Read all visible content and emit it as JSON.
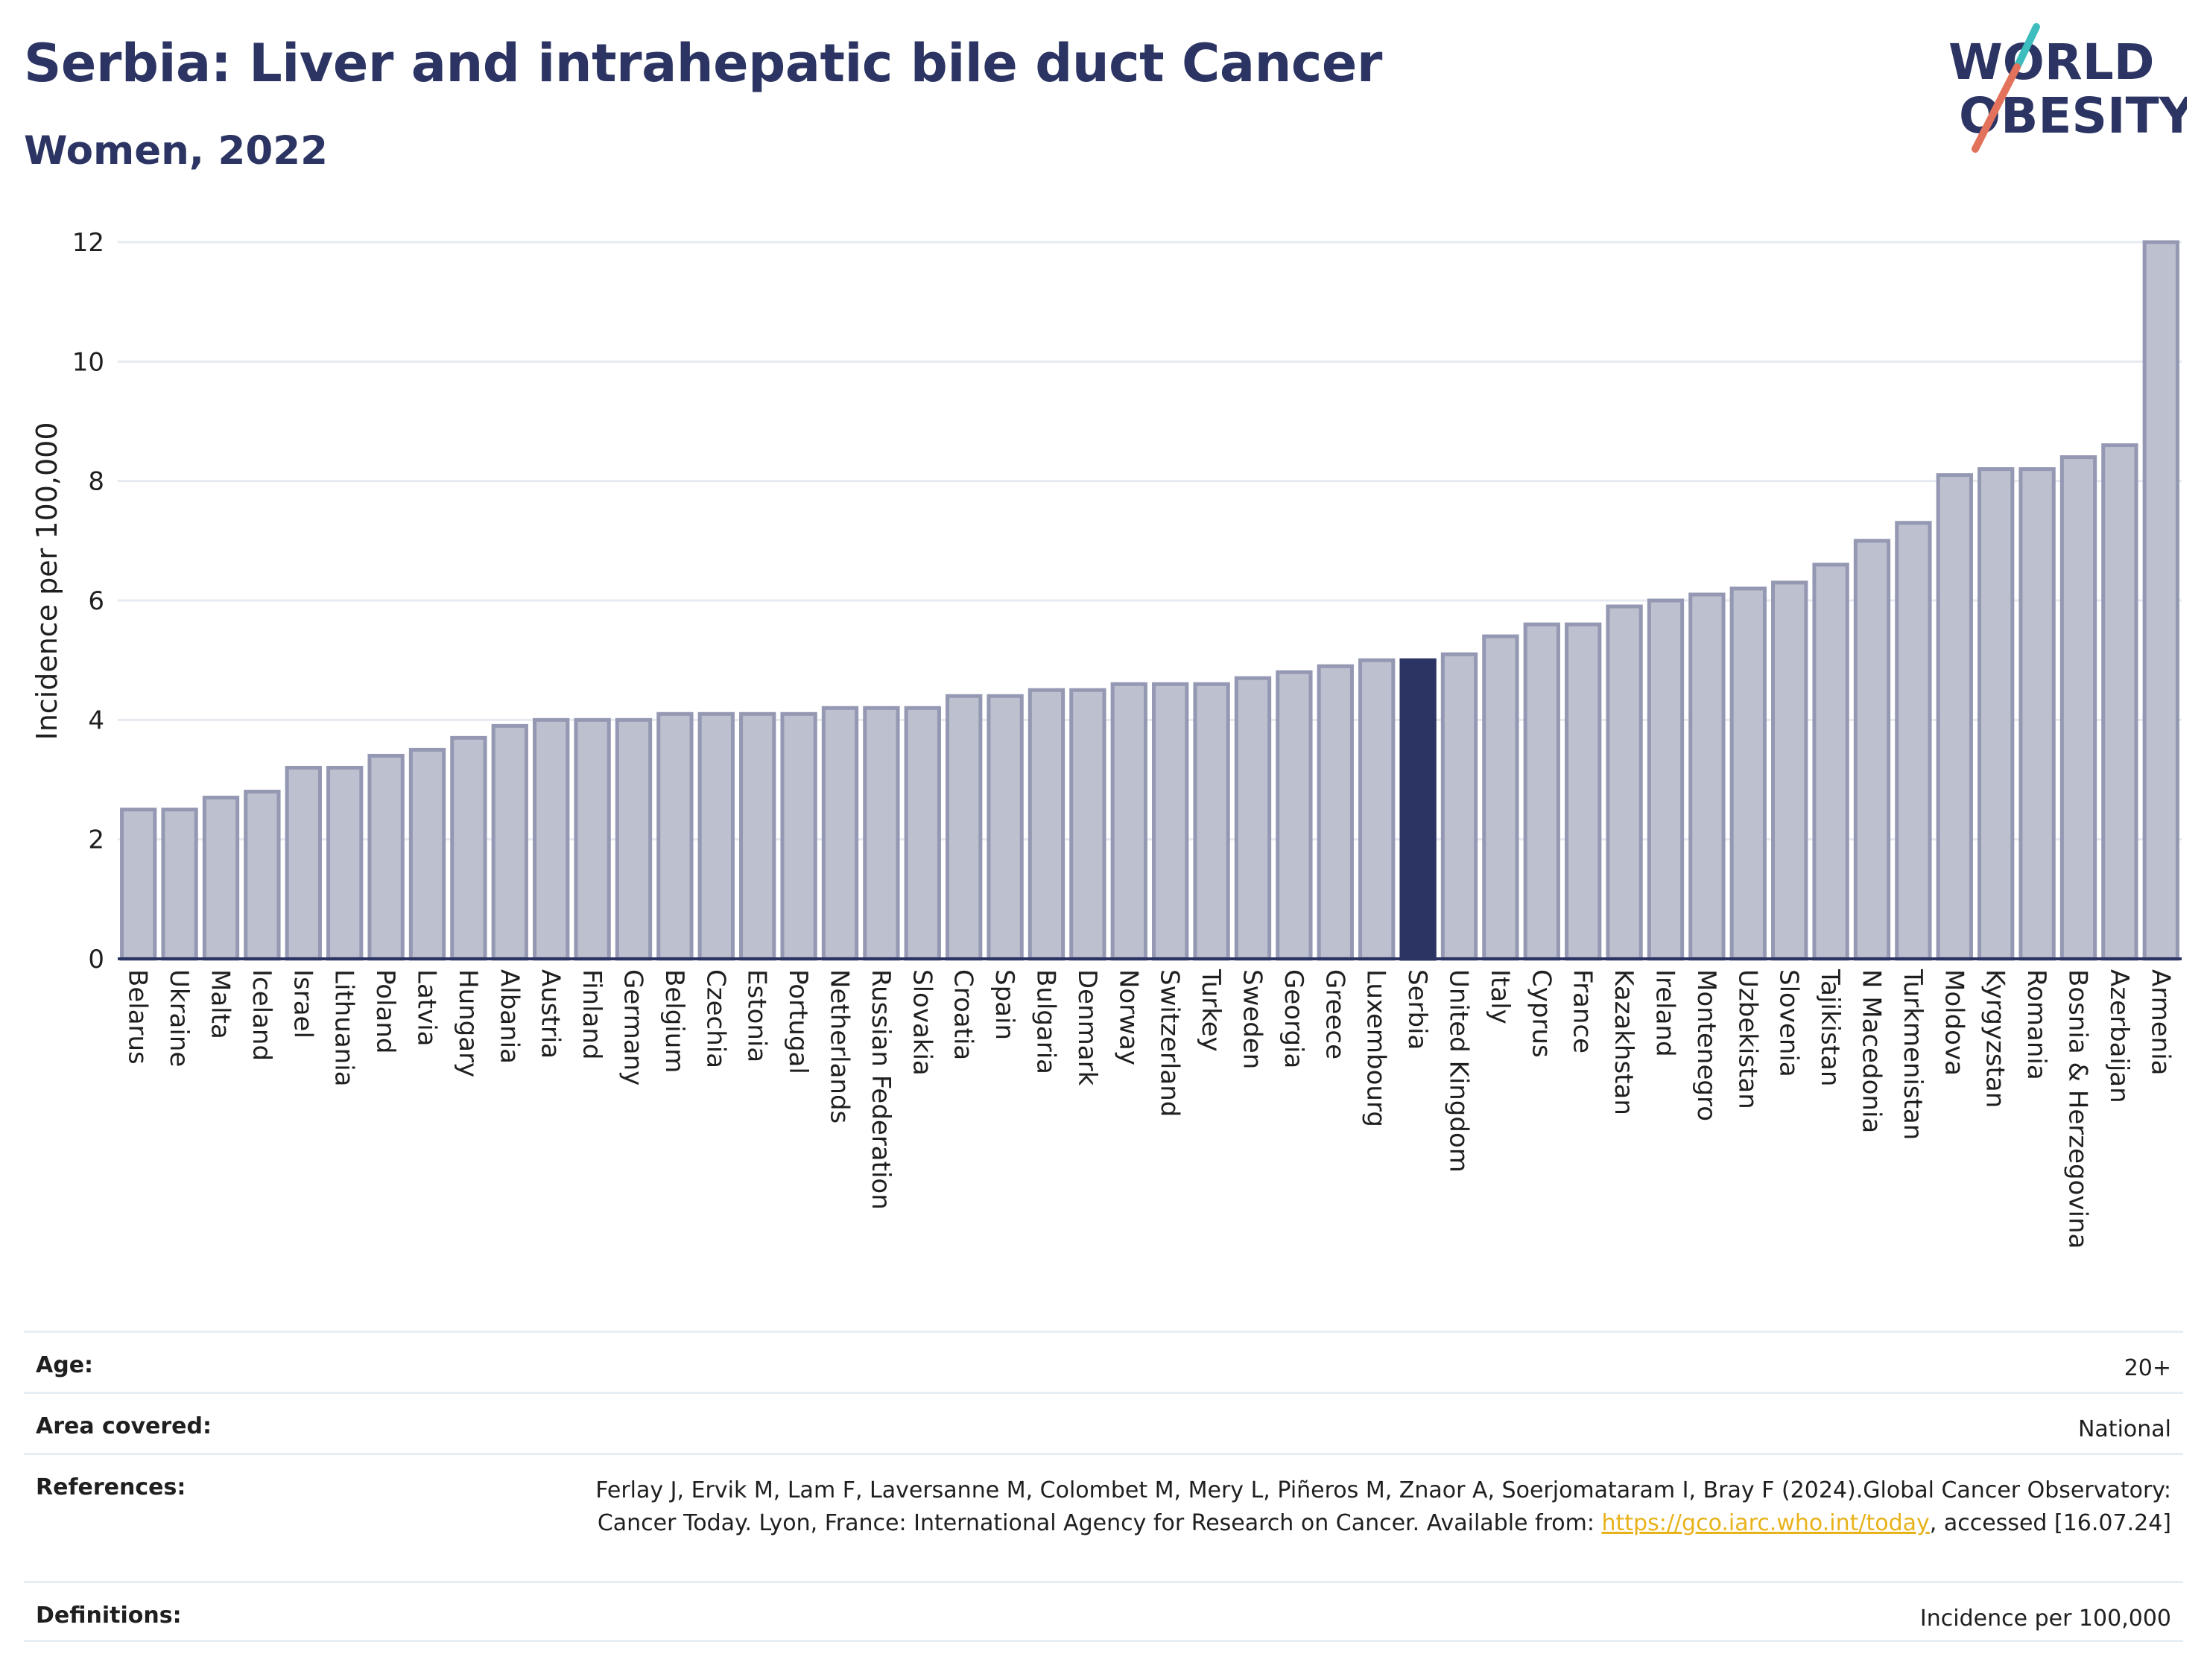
{
  "title": "Serbia: Liver and intrahepatic bile duct Cancer",
  "subtitle": "Women, 2022",
  "logo": {
    "line1": "WORLD",
    "line2": "OBESITY",
    "colors": [
      "#2b3462",
      "#e2725b",
      "#3dbdbd"
    ]
  },
  "colors": {
    "bar": "#bcc0cf",
    "bar_edge": "#9498b2",
    "highlight": "#2b3462",
    "grid": "#e6eaf0"
  },
  "chart_data": {
    "type": "bar",
    "title": "Serbia: Liver and intrahepatic bile duct Cancer",
    "subtitle": "Women, 2022",
    "ylabel": "Incidence per 100,000",
    "xlabel": "",
    "ylim": [
      0,
      12
    ],
    "yticks": [
      0,
      2,
      4,
      6,
      8,
      10,
      12
    ],
    "grid": true,
    "highlight": "Serbia",
    "categories": [
      "Belarus",
      "Ukraine",
      "Malta",
      "Iceland",
      "Israel",
      "Lithuania",
      "Poland",
      "Latvia",
      "Hungary",
      "Albania",
      "Austria",
      "Finland",
      "Germany",
      "Belgium",
      "Czechia",
      "Estonia",
      "Portugal",
      "Netherlands",
      "Russian Federation",
      "Slovakia",
      "Croatia",
      "Spain",
      "Bulgaria",
      "Denmark",
      "Norway",
      "Switzerland",
      "Turkey",
      "Sweden",
      "Georgia",
      "Greece",
      "Luxembourg",
      "Serbia",
      "United Kingdom",
      "Italy",
      "Cyprus",
      "France",
      "Kazakhstan",
      "Ireland",
      "Montenegro",
      "Uzbekistan",
      "Slovenia",
      "Tajikistan",
      "N Macedonia",
      "Turkmenistan",
      "Moldova",
      "Kyrgyzstan",
      "Romania",
      "Bosnia & Herzegovina",
      "Azerbaijan",
      "Armenia"
    ],
    "values": [
      2.5,
      2.5,
      2.7,
      2.8,
      3.2,
      3.2,
      3.4,
      3.5,
      3.7,
      3.9,
      4.0,
      4.0,
      4.0,
      4.1,
      4.1,
      4.1,
      4.1,
      4.2,
      4.2,
      4.2,
      4.4,
      4.4,
      4.5,
      4.5,
      4.6,
      4.6,
      4.6,
      4.7,
      4.8,
      4.9,
      5.0,
      5.0,
      5.1,
      5.4,
      5.6,
      5.6,
      5.9,
      6.0,
      6.1,
      6.2,
      6.3,
      6.6,
      7.0,
      7.3,
      8.1,
      8.2,
      8.2,
      8.4,
      8.6,
      12.0
    ]
  },
  "info": [
    {
      "key": "Age:",
      "value": "20+"
    },
    {
      "key": "Area covered:",
      "value": "National"
    },
    {
      "key": "References:",
      "value": "Ferlay J, Ervik M, Lam F, Laversanne M, Colombet M, Mery L, Piñeros M, Znaor A, Soerjomataram I, Bray F (2024).Global Cancer Observatory: Cancer Today. Lyon, France: International Agency for Research on Cancer. Available from: ",
      "link": "https://gco.iarc.who.int/today",
      "suffix": ", accessed [16.07.24]"
    },
    {
      "key": "Definitions:",
      "value": "Incidence per 100,000"
    }
  ]
}
